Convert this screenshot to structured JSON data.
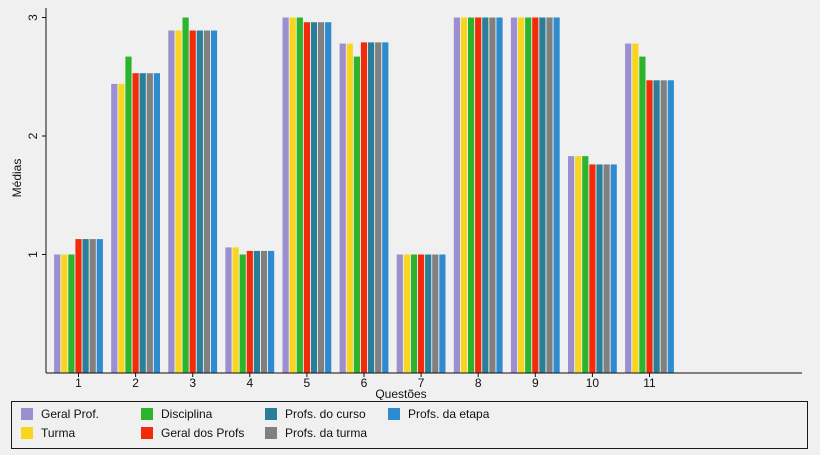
{
  "chart_data": {
    "type": "bar",
    "xlabel": "Questões",
    "ylabel": "Médias",
    "categories": [
      "1",
      "2",
      "3",
      "4",
      "5",
      "6",
      "7",
      "8",
      "9",
      "10",
      "11"
    ],
    "yticks": [
      "1",
      "2",
      "3"
    ],
    "ylim": [
      0,
      3
    ],
    "grid": false,
    "legend_position": "bottom",
    "series": [
      {
        "name": "Geral Prof.",
        "color": "#9b8fcf",
        "values": [
          1.0,
          2.44,
          2.89,
          1.06,
          3.0,
          2.78,
          1.0,
          3.0,
          3.0,
          1.83,
          2.78
        ]
      },
      {
        "name": "Turma",
        "color": "#f8d51e",
        "values": [
          1.0,
          2.44,
          2.89,
          1.06,
          3.0,
          2.78,
          1.0,
          3.0,
          3.0,
          1.83,
          2.78
        ]
      },
      {
        "name": "Disciplina",
        "color": "#2db42c",
        "values": [
          1.0,
          2.67,
          3.0,
          1.0,
          3.0,
          2.67,
          1.0,
          3.0,
          3.0,
          1.83,
          2.67
        ]
      },
      {
        "name": "Geral dos Profs",
        "color": "#f22b0b",
        "values": [
          1.13,
          2.53,
          2.89,
          1.03,
          2.96,
          2.79,
          1.0,
          3.0,
          3.0,
          1.76,
          2.47
        ]
      },
      {
        "name": "Profs. do curso",
        "color": "#2b7e97",
        "values": [
          1.13,
          2.53,
          2.89,
          1.03,
          2.96,
          2.79,
          1.0,
          3.0,
          3.0,
          1.76,
          2.47
        ]
      },
      {
        "name": "Profs. da turma",
        "color": "#808080",
        "values": [
          1.13,
          2.53,
          2.89,
          1.03,
          2.96,
          2.79,
          1.0,
          3.0,
          3.0,
          1.76,
          2.47
        ]
      },
      {
        "name": "Profs. da etapa",
        "color": "#2e8bd0",
        "values": [
          1.13,
          2.53,
          2.89,
          1.03,
          2.96,
          2.79,
          1.0,
          3.0,
          3.0,
          1.76,
          2.47
        ]
      }
    ]
  }
}
